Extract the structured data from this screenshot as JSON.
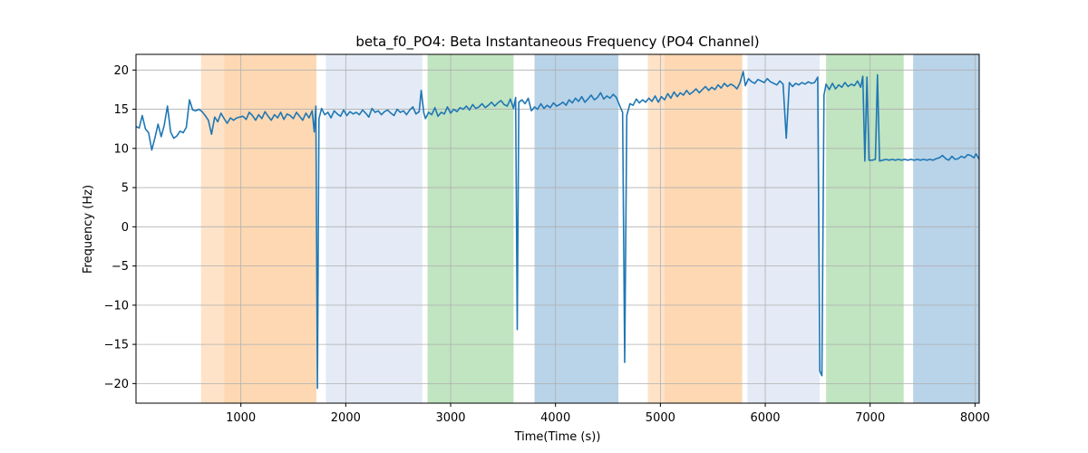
{
  "chart_data": {
    "type": "line",
    "title": "beta_f0_PO4: Beta Instantaneous Frequency (PO4 Channel)",
    "xlabel": "Time(Time (s))",
    "ylabel": "Frequency (Hz)",
    "xlim": [
      0,
      8040
    ],
    "ylim": [
      -22.5,
      22
    ],
    "xticks": [
      1000,
      2000,
      3000,
      4000,
      5000,
      6000,
      7000,
      8000
    ],
    "yticks": [
      -20,
      -15,
      -10,
      -5,
      0,
      5,
      10,
      15,
      20
    ],
    "grid": true,
    "line_color": "#1f77b4",
    "bands": [
      {
        "x0": 620,
        "x1": 840,
        "color": "#ffe3c8"
      },
      {
        "x0": 840,
        "x1": 1720,
        "color": "#fdd8b2"
      },
      {
        "x0": 1810,
        "x1": 2730,
        "color": "#e4ebf6"
      },
      {
        "x0": 2780,
        "x1": 3600,
        "color": "#c1e4c1"
      },
      {
        "x0": 3800,
        "x1": 4600,
        "color": "#b9d3e8"
      },
      {
        "x0": 4880,
        "x1": 5040,
        "color": "#ffe3c8"
      },
      {
        "x0": 5040,
        "x1": 5780,
        "color": "#fdd8b2"
      },
      {
        "x0": 5830,
        "x1": 6520,
        "color": "#e4ebf6"
      },
      {
        "x0": 6580,
        "x1": 7320,
        "color": "#c1e4c1"
      },
      {
        "x0": 7410,
        "x1": 8040,
        "color": "#b9d3e8"
      }
    ],
    "series": [
      {
        "points": [
          [
            0,
            12.8
          ],
          [
            30,
            12.6
          ],
          [
            60,
            14.2
          ],
          [
            90,
            12.5
          ],
          [
            120,
            12.0
          ],
          [
            150,
            9.8
          ],
          [
            180,
            11.3
          ],
          [
            210,
            13.1
          ],
          [
            240,
            11.5
          ],
          [
            270,
            13.0
          ],
          [
            300,
            15.4
          ],
          [
            330,
            12.1
          ],
          [
            360,
            11.3
          ],
          [
            390,
            11.6
          ],
          [
            420,
            12.2
          ],
          [
            450,
            12.0
          ],
          [
            480,
            12.7
          ],
          [
            510,
            16.2
          ],
          [
            540,
            14.9
          ],
          [
            570,
            14.8
          ],
          [
            600,
            15.0
          ],
          [
            630,
            14.7
          ],
          [
            660,
            14.2
          ],
          [
            690,
            13.6
          ],
          [
            720,
            11.8
          ],
          [
            750,
            14.0
          ],
          [
            780,
            13.4
          ],
          [
            810,
            14.5
          ],
          [
            840,
            13.8
          ],
          [
            870,
            13.2
          ],
          [
            900,
            13.9
          ],
          [
            930,
            13.6
          ],
          [
            960,
            13.9
          ],
          [
            990,
            14.0
          ],
          [
            1020,
            14.1
          ],
          [
            1050,
            13.7
          ],
          [
            1080,
            14.6
          ],
          [
            1110,
            14.2
          ],
          [
            1140,
            13.6
          ],
          [
            1170,
            14.3
          ],
          [
            1200,
            13.8
          ],
          [
            1230,
            14.7
          ],
          [
            1260,
            14.1
          ],
          [
            1290,
            13.6
          ],
          [
            1320,
            14.3
          ],
          [
            1350,
            13.9
          ],
          [
            1380,
            14.6
          ],
          [
            1410,
            13.7
          ],
          [
            1440,
            14.4
          ],
          [
            1470,
            14.2
          ],
          [
            1500,
            13.8
          ],
          [
            1530,
            14.6
          ],
          [
            1560,
            14.1
          ],
          [
            1590,
            13.6
          ],
          [
            1620,
            14.5
          ],
          [
            1650,
            13.9
          ],
          [
            1680,
            14.8
          ],
          [
            1700,
            12.1
          ],
          [
            1715,
            15.4
          ],
          [
            1730,
            -20.6
          ],
          [
            1745,
            13.8
          ],
          [
            1770,
            15.1
          ],
          [
            1800,
            14.3
          ],
          [
            1830,
            14.6
          ],
          [
            1860,
            13.9
          ],
          [
            1890,
            14.8
          ],
          [
            1920,
            14.4
          ],
          [
            1950,
            14.1
          ],
          [
            1980,
            14.9
          ],
          [
            2010,
            14.2
          ],
          [
            2040,
            14.7
          ],
          [
            2070,
            14.4
          ],
          [
            2100,
            14.6
          ],
          [
            2130,
            14.3
          ],
          [
            2160,
            14.9
          ],
          [
            2190,
            14.5
          ],
          [
            2220,
            14.0
          ],
          [
            2250,
            15.1
          ],
          [
            2280,
            14.6
          ],
          [
            2310,
            14.8
          ],
          [
            2340,
            14.3
          ],
          [
            2370,
            14.7
          ],
          [
            2400,
            14.9
          ],
          [
            2430,
            14.5
          ],
          [
            2460,
            14.2
          ],
          [
            2490,
            15.0
          ],
          [
            2520,
            14.6
          ],
          [
            2550,
            14.8
          ],
          [
            2580,
            14.3
          ],
          [
            2610,
            14.9
          ],
          [
            2640,
            15.3
          ],
          [
            2670,
            14.4
          ],
          [
            2700,
            14.7
          ],
          [
            2720,
            17.4
          ],
          [
            2745,
            14.5
          ],
          [
            2760,
            13.8
          ],
          [
            2790,
            14.6
          ],
          [
            2820,
            14.3
          ],
          [
            2850,
            15.2
          ],
          [
            2880,
            14.1
          ],
          [
            2910,
            14.6
          ],
          [
            2940,
            14.4
          ],
          [
            2970,
            15.3
          ],
          [
            3000,
            14.5
          ],
          [
            3030,
            15.0
          ],
          [
            3060,
            14.7
          ],
          [
            3090,
            15.2
          ],
          [
            3120,
            15.0
          ],
          [
            3150,
            15.4
          ],
          [
            3180,
            14.9
          ],
          [
            3210,
            15.6
          ],
          [
            3240,
            15.1
          ],
          [
            3270,
            15.3
          ],
          [
            3300,
            15.7
          ],
          [
            3330,
            15.2
          ],
          [
            3360,
            15.5
          ],
          [
            3390,
            15.9
          ],
          [
            3420,
            15.4
          ],
          [
            3450,
            15.8
          ],
          [
            3480,
            16.1
          ],
          [
            3510,
            15.6
          ],
          [
            3540,
            15.4
          ],
          [
            3570,
            16.3
          ],
          [
            3600,
            15.1
          ],
          [
            3620,
            16.5
          ],
          [
            3635,
            -13.1
          ],
          [
            3650,
            15.9
          ],
          [
            3680,
            16.2
          ],
          [
            3710,
            15.7
          ],
          [
            3740,
            16.4
          ],
          [
            3770,
            14.8
          ],
          [
            3800,
            15.3
          ],
          [
            3830,
            15.0
          ],
          [
            3860,
            15.7
          ],
          [
            3890,
            15.1
          ],
          [
            3920,
            15.5
          ],
          [
            3950,
            15.2
          ],
          [
            3980,
            15.8
          ],
          [
            4010,
            15.4
          ],
          [
            4040,
            15.6
          ],
          [
            4070,
            15.9
          ],
          [
            4100,
            15.5
          ],
          [
            4130,
            16.2
          ],
          [
            4160,
            15.8
          ],
          [
            4190,
            16.4
          ],
          [
            4220,
            16.0
          ],
          [
            4250,
            16.6
          ],
          [
            4280,
            15.9
          ],
          [
            4310,
            16.3
          ],
          [
            4340,
            16.8
          ],
          [
            4370,
            16.2
          ],
          [
            4400,
            16.5
          ],
          [
            4430,
            17.1
          ],
          [
            4460,
            16.3
          ],
          [
            4490,
            16.7
          ],
          [
            4520,
            16.4
          ],
          [
            4550,
            16.9
          ],
          [
            4580,
            16.5
          ],
          [
            4620,
            15.2
          ],
          [
            4640,
            14.6
          ],
          [
            4660,
            -17.3
          ],
          [
            4680,
            14.2
          ],
          [
            4710,
            15.7
          ],
          [
            4740,
            15.5
          ],
          [
            4770,
            16.3
          ],
          [
            4800,
            15.8
          ],
          [
            4830,
            16.2
          ],
          [
            4860,
            15.9
          ],
          [
            4890,
            16.4
          ],
          [
            4920,
            16.0
          ],
          [
            4950,
            16.7
          ],
          [
            4980,
            15.9
          ],
          [
            5010,
            16.6
          ],
          [
            5040,
            16.2
          ],
          [
            5070,
            17.0
          ],
          [
            5100,
            16.4
          ],
          [
            5130,
            17.2
          ],
          [
            5160,
            16.6
          ],
          [
            5190,
            17.1
          ],
          [
            5220,
            16.8
          ],
          [
            5250,
            17.4
          ],
          [
            5280,
            16.9
          ],
          [
            5310,
            17.2
          ],
          [
            5340,
            17.6
          ],
          [
            5370,
            17.1
          ],
          [
            5400,
            17.5
          ],
          [
            5430,
            17.9
          ],
          [
            5460,
            17.4
          ],
          [
            5490,
            17.8
          ],
          [
            5520,
            17.5
          ],
          [
            5550,
            18.1
          ],
          [
            5580,
            17.7
          ],
          [
            5610,
            18.3
          ],
          [
            5640,
            17.9
          ],
          [
            5670,
            18.2
          ],
          [
            5700,
            18.0
          ],
          [
            5730,
            17.6
          ],
          [
            5760,
            18.4
          ],
          [
            5790,
            19.8
          ],
          [
            5810,
            18.0
          ],
          [
            5840,
            18.9
          ],
          [
            5870,
            18.5
          ],
          [
            5900,
            18.3
          ],
          [
            5930,
            18.8
          ],
          [
            5960,
            18.6
          ],
          [
            5990,
            18.4
          ],
          [
            6020,
            18.9
          ],
          [
            6050,
            18.5
          ],
          [
            6080,
            18.3
          ],
          [
            6110,
            18.1
          ],
          [
            6140,
            18.6
          ],
          [
            6170,
            18.2
          ],
          [
            6200,
            11.3
          ],
          [
            6230,
            18.4
          ],
          [
            6260,
            17.9
          ],
          [
            6290,
            18.3
          ],
          [
            6320,
            18.1
          ],
          [
            6350,
            18.4
          ],
          [
            6380,
            18.2
          ],
          [
            6410,
            18.5
          ],
          [
            6440,
            18.3
          ],
          [
            6470,
            18.4
          ],
          [
            6500,
            19.1
          ],
          [
            6520,
            -18.4
          ],
          [
            6540,
            -19.0
          ],
          [
            6560,
            16.8
          ],
          [
            6580,
            18.2
          ],
          [
            6610,
            17.5
          ],
          [
            6640,
            18.3
          ],
          [
            6670,
            17.6
          ],
          [
            6700,
            18.1
          ],
          [
            6730,
            17.8
          ],
          [
            6760,
            18.4
          ],
          [
            6790,
            17.9
          ],
          [
            6820,
            18.2
          ],
          [
            6850,
            18.0
          ],
          [
            6880,
            18.6
          ],
          [
            6910,
            17.8
          ],
          [
            6930,
            19.2
          ],
          [
            6950,
            8.4
          ],
          [
            6970,
            19.1
          ],
          [
            6990,
            8.5
          ],
          [
            7020,
            8.5
          ],
          [
            7050,
            8.6
          ],
          [
            7070,
            19.4
          ],
          [
            7090,
            8.4
          ],
          [
            7120,
            8.5
          ],
          [
            7150,
            8.6
          ],
          [
            7180,
            8.5
          ],
          [
            7210,
            8.6
          ],
          [
            7240,
            8.5
          ],
          [
            7270,
            8.6
          ],
          [
            7300,
            8.5
          ],
          [
            7330,
            8.6
          ],
          [
            7360,
            8.5
          ],
          [
            7390,
            8.6
          ],
          [
            7420,
            8.5
          ],
          [
            7450,
            8.6
          ],
          [
            7480,
            8.5
          ],
          [
            7510,
            8.6
          ],
          [
            7540,
            8.5
          ],
          [
            7570,
            8.6
          ],
          [
            7600,
            8.5
          ],
          [
            7630,
            8.7
          ],
          [
            7660,
            8.8
          ],
          [
            7690,
            9.1
          ],
          [
            7720,
            8.7
          ],
          [
            7750,
            8.5
          ],
          [
            7780,
            9.0
          ],
          [
            7810,
            8.6
          ],
          [
            7840,
            8.7
          ],
          [
            7870,
            9.0
          ],
          [
            7900,
            8.8
          ],
          [
            7930,
            9.2
          ],
          [
            7960,
            9.1
          ],
          [
            7990,
            8.8
          ],
          [
            8010,
            9.3
          ],
          [
            8040,
            8.6
          ]
        ]
      }
    ]
  }
}
